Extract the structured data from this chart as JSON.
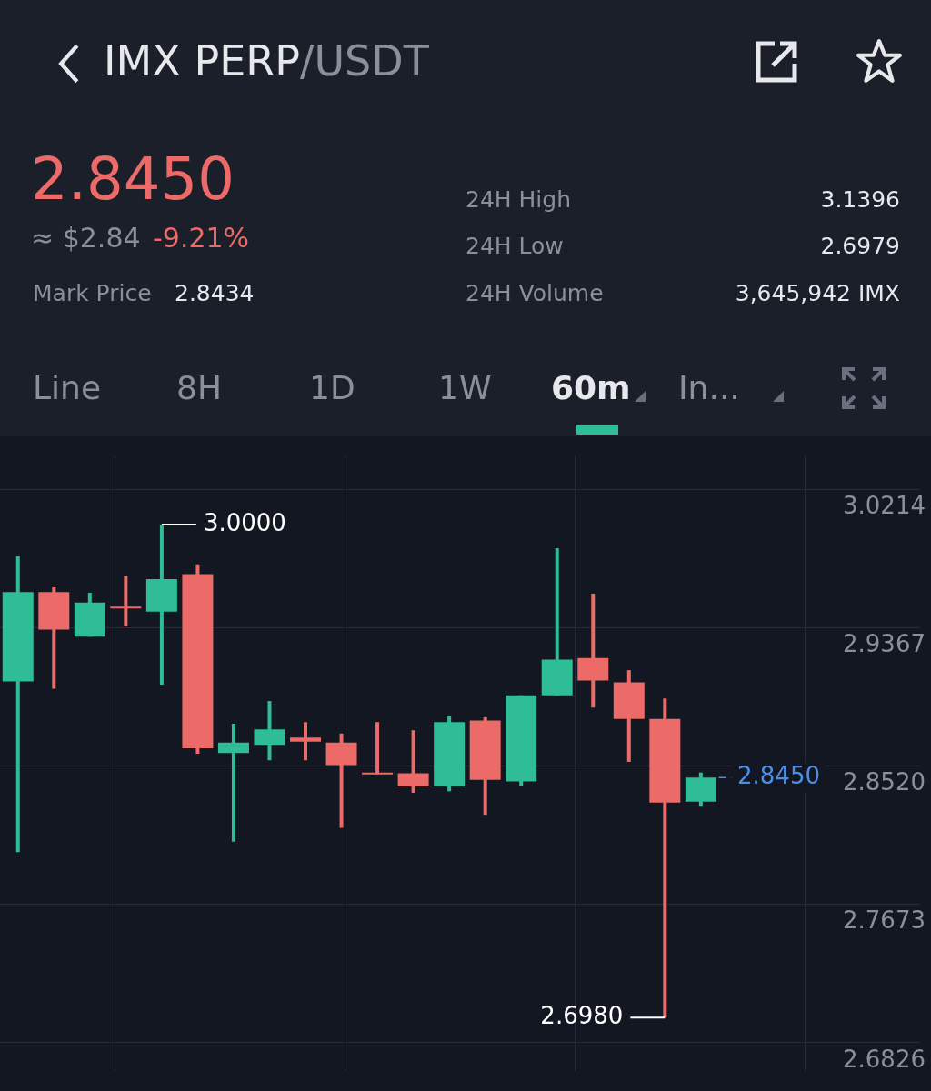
{
  "chart_data": {
    "type": "candlestick",
    "title": "IMX PERP/USDT",
    "categories": [
      null,
      null,
      null,
      null,
      null,
      null,
      null,
      null,
      null,
      null,
      null,
      null,
      null,
      null,
      null,
      null,
      null,
      null,
      null,
      null
    ],
    "ohlc": [
      [
        2.9039,
        2.9806,
        2.7993,
        2.9587
      ],
      [
        2.9587,
        2.9616,
        2.8994,
        2.9357
      ],
      [
        2.9313,
        2.9582,
        2.9313,
        2.9522
      ],
      [
        2.9497,
        2.9686,
        2.9377,
        2.9497
      ],
      [
        2.9467,
        3.0,
        2.9019,
        2.9666
      ],
      [
        2.9696,
        2.9756,
        2.8596,
        2.863
      ],
      [
        2.8601,
        2.878,
        2.8058,
        2.8665
      ],
      [
        2.865,
        2.8919,
        2.8556,
        2.8745
      ],
      [
        2.8695,
        2.879,
        2.8556,
        2.867
      ],
      [
        2.8665,
        2.872,
        2.8142,
        2.8526
      ],
      [
        2.8481,
        2.879,
        2.8471,
        2.8476
      ],
      [
        2.8476,
        2.874,
        2.8357,
        2.8396
      ],
      [
        2.8396,
        2.883,
        2.8366,
        2.879
      ],
      [
        2.88,
        2.882,
        2.8222,
        2.8436
      ],
      [
        2.8426,
        2.8954,
        2.8401,
        2.8954
      ],
      [
        2.8954,
        2.9855,
        2.8954,
        2.9173
      ],
      [
        2.9183,
        2.9577,
        2.8879,
        2.9044
      ],
      [
        2.9034,
        2.9108,
        2.8546,
        2.881
      ],
      [
        2.881,
        2.8934,
        2.698,
        2.8297
      ],
      [
        2.8302,
        2.8481,
        2.8272,
        2.845
      ]
    ],
    "colors": [
      "#2ebd94",
      "#ec6a67",
      "#2ebd94",
      "#ec6a67",
      "#2ebd94",
      "#ec6a67",
      "#2ebd94",
      "#2ebd94",
      "#ec6a67",
      "#ec6a67",
      "#ec6a67",
      "#ec6a67",
      "#2ebd94",
      "#ec6a67",
      "#2ebd94",
      "#2ebd94",
      "#ec6a67",
      "#ec6a67",
      "#ec6a67",
      "#2ebd94"
    ],
    "ylim": [
      2.665,
      3.042
    ],
    "yticks": [
      3.0214,
      2.9367,
      {
        "value": 2.852,
        "label": "2.8520"
      },
      2.7673,
      2.6826
    ],
    "grid": true,
    "ref_lines": [
      {
        "axis": "y",
        "value": 2.845,
        "label": "2.8450",
        "color": "#4d8fe6",
        "line_style": "dashed"
      }
    ],
    "annotations": [
      "2.8450",
      "≈ $2.84",
      "-9.21%",
      "Mark Price",
      "2.8434",
      "24H High",
      "3.1396",
      "24H Low",
      "2.6979",
      "24H Volume",
      "3,645,942 IMX",
      "Line",
      "8H",
      "1D",
      "1W",
      "60m",
      "In...",
      "3.0000",
      "2.6980"
    ]
  }
}
